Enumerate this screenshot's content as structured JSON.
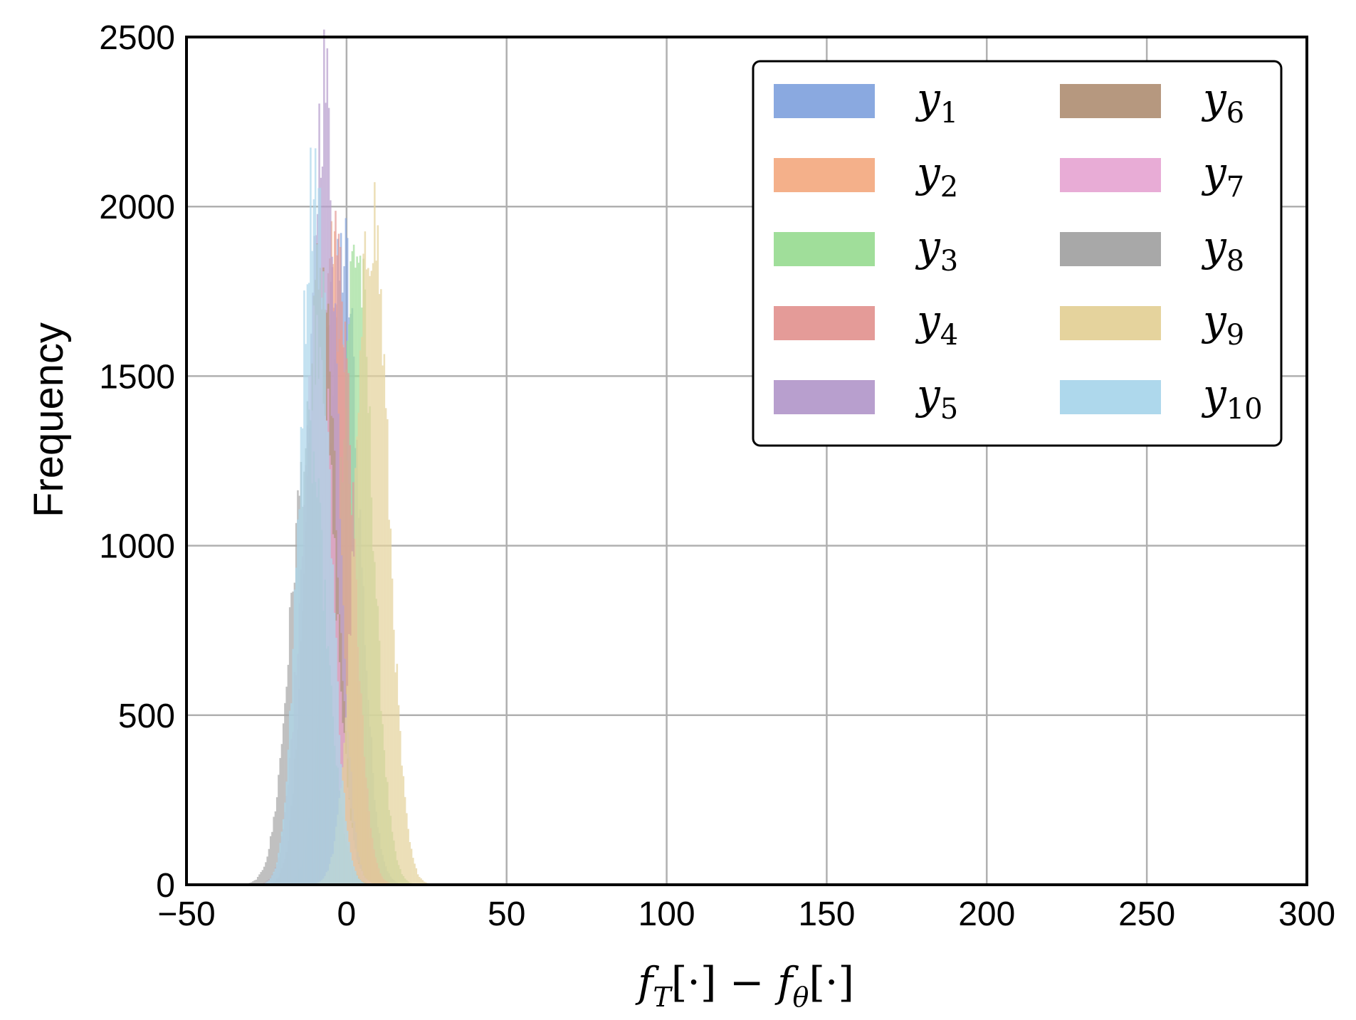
{
  "chart_data": {
    "type": "histogram",
    "xlim": [
      -50,
      300
    ],
    "ylim": [
      0,
      2500
    ],
    "xticks": [
      "−50",
      "0",
      "50",
      "100",
      "150",
      "200",
      "250",
      "300"
    ],
    "yticks": [
      "0",
      "500",
      "1000",
      "1500",
      "2000",
      "2500"
    ],
    "xtick_values": [
      -50,
      0,
      50,
      100,
      150,
      200,
      250,
      300
    ],
    "ytick_values": [
      0,
      500,
      1000,
      1500,
      2000,
      2500
    ],
    "ylabel": "Frequency",
    "xlabel": {
      "f": "f",
      "sub1": "T",
      "bracket1": "[·]",
      "minus": " − ",
      "f2": "f",
      "sub2": "θ",
      "bracket2": "[·]"
    },
    "grid": true,
    "legend_placement": "top-right",
    "legend_columns": 2,
    "series": [
      {
        "name": "y1",
        "label_base": "y",
        "label_sub": "1",
        "color": "#8aa9e0",
        "center": -1,
        "sigma": 5.0,
        "peak": 1850
      },
      {
        "name": "y2",
        "label_base": "y",
        "label_sub": "2",
        "color": "#f4b08a",
        "center": -4,
        "sigma": 5.0,
        "peak": 1800
      },
      {
        "name": "y3",
        "label_base": "y",
        "label_sub": "3",
        "color": "#a0de9a",
        "center": 3,
        "sigma": 5.0,
        "peak": 1880
      },
      {
        "name": "y4",
        "label_base": "y",
        "label_sub": "4",
        "color": "#e49b98",
        "center": -3,
        "sigma": 4.8,
        "peak": 1880
      },
      {
        "name": "y5",
        "label_base": "y",
        "label_sub": "5",
        "color": "#b89fce",
        "center": -7,
        "sigma": 4.2,
        "peak": 2360
      },
      {
        "name": "y6",
        "label_base": "y",
        "label_sub": "6",
        "color": "#b6987f",
        "center": -8,
        "sigma": 4.5,
        "peak": 1830
      },
      {
        "name": "y7",
        "label_base": "y",
        "label_sub": "7",
        "color": "#e8acd6",
        "center": -9,
        "sigma": 5.0,
        "peak": 1650
      },
      {
        "name": "y8",
        "label_base": "y",
        "label_sub": "8",
        "color": "#a8a8a8",
        "center": -12,
        "sigma": 5.5,
        "peak": 1300
      },
      {
        "name": "y9",
        "label_base": "y",
        "label_sub": "9",
        "color": "#e5d39d",
        "center": 8,
        "sigma": 5.0,
        "peak": 1980
      },
      {
        "name": "y10",
        "label_base": "y",
        "label_sub": "10",
        "color": "#aed8ec",
        "center": -10,
        "sigma": 4.5,
        "peak": 2100
      }
    ]
  }
}
